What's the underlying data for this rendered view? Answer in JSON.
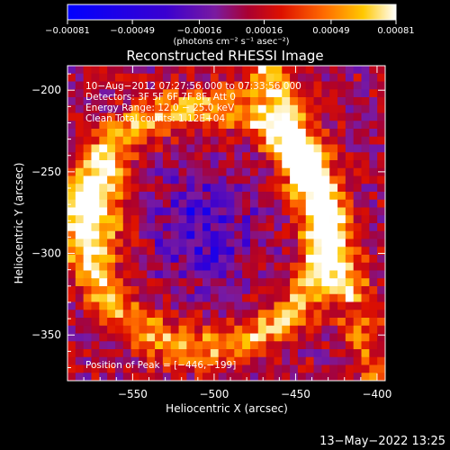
{
  "chart_data": {
    "type": "heatmap",
    "title": "Reconstructed RHESSI Image",
    "xlabel": "Heliocentric X (arcsec)",
    "ylabel": "Heliocentric Y (arcsec)",
    "xlim": [
      -590,
      -395
    ],
    "ylim": [
      -378,
      -185
    ],
    "x_ticks": [
      -550,
      -500,
      -450,
      -400
    ],
    "x_tick_labels": [
      "−550",
      "−500",
      "−450",
      "−400"
    ],
    "y_ticks": [
      -350,
      -300,
      -250,
      -200
    ],
    "y_tick_labels": [
      "−350",
      "−300",
      "−250",
      "−200"
    ],
    "colorbar": {
      "min": -0.00081,
      "max": 0.00081,
      "ticks": [
        -0.00081,
        -0.00049,
        -0.00016,
        0.00016,
        0.00049,
        0.00081
      ],
      "tick_labels": [
        "−0.00081",
        "−0.00049",
        "−0.00016",
        "0.00016",
        "0.00049",
        "0.00081"
      ],
      "units_label": "(photons cm⁻² s⁻¹ asec⁻²)",
      "colors": [
        "#0000ff",
        "#3a00d0",
        "#7a1aa0",
        "#aa0030",
        "#dd1000",
        "#ff6a00",
        "#ffc800",
        "#ffffff"
      ]
    },
    "annotations": [
      "10−Aug−2012 07:27:56.000 to 07:33:56.000",
      "Detectors: 3F 5F 6F 7F 8F, Att 0",
      "Energy Range: 12.0 − 25.0 keV",
      "Clean     Total counts: 1.12E+04"
    ],
    "peak_label": "Position of Peak = [−446,−199]",
    "peak": [
      -446,
      -199
    ]
  },
  "footer_timestamp": "13−May−2022 13:25"
}
